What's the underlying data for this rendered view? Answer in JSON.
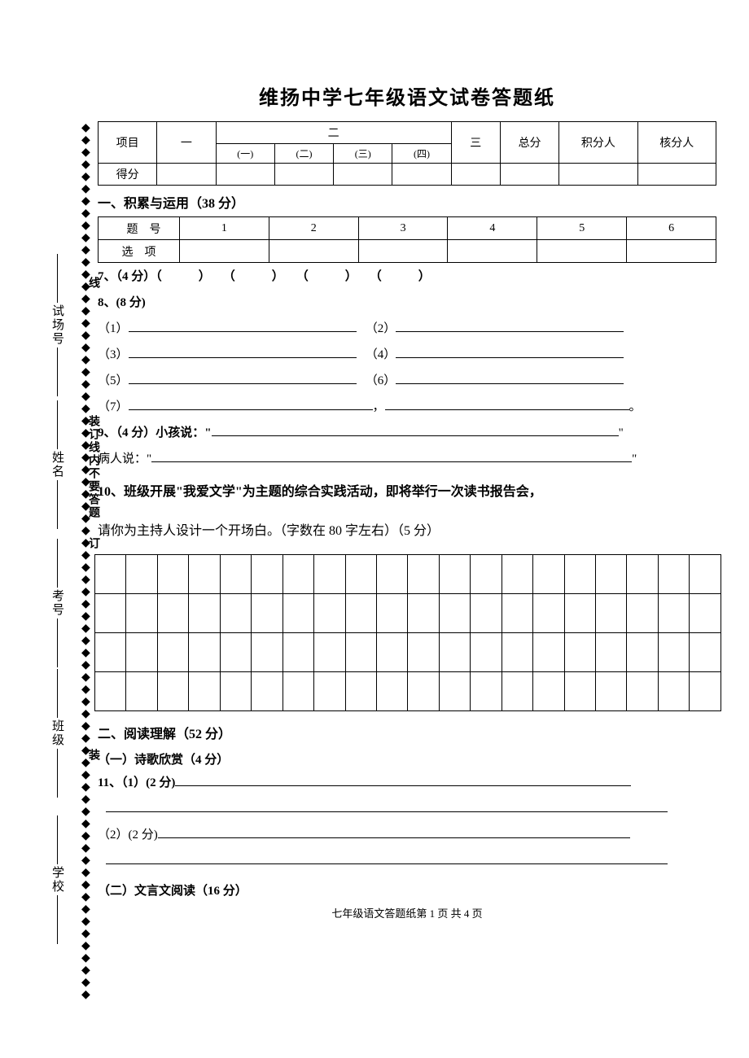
{
  "title": "维扬中学七年级语文试卷答题纸",
  "score_table": {
    "row1": [
      "项目",
      "一",
      "二",
      "三",
      "总分",
      "积分人",
      "核分人"
    ],
    "sub": [
      "(一)",
      "(二)",
      "(三)",
      "(四)"
    ],
    "row2_label": "得分"
  },
  "section1": {
    "heading": "一、积累与运用（38 分）",
    "qnum_label": "题　号",
    "opt_label": "选　项",
    "nums": [
      "1",
      "2",
      "3",
      "4",
      "5",
      "6"
    ],
    "q7": "7、（4 分）（　　　）　　（　　　）　　（　　　）　　（　　　）",
    "q8": "8、(8 分)",
    "q8_items": [
      "（1）",
      "（2）",
      "（3）",
      "（4）",
      "（5）",
      "（6）",
      "（7）"
    ],
    "q9a": "9、（4 分）小孩说：\"",
    "q9b": "病人说：\"",
    "quote_end": "\"",
    "period": "。",
    "comma": "，",
    "q10a": "10、班级开展\"我爱文学\"为主题的综合实践活动，即将举行一次读书报告会，",
    "q10b": "请你为主持人设计一个开场白。（字数在 80 字左右）（5 分）"
  },
  "section2": {
    "heading": "二、阅读理解（52 分）",
    "sub1": "（一）诗歌欣赏（4 分）",
    "q11a": "11、（1）(2 分)",
    "q11b": "（2）(2 分)",
    "sub2": "（二）文言文阅读（16 分）"
  },
  "sidebar": {
    "labels": [
      "试场号",
      "姓名",
      "考号",
      "班级",
      "学校"
    ],
    "inner_top": "线",
    "inner_mid": "装订线内不要答题",
    "inner_bot1": "订",
    "inner_bot2": "装"
  },
  "footer": "七年级语文答题纸第 1 页 共 4 页",
  "diamond": "◆"
}
